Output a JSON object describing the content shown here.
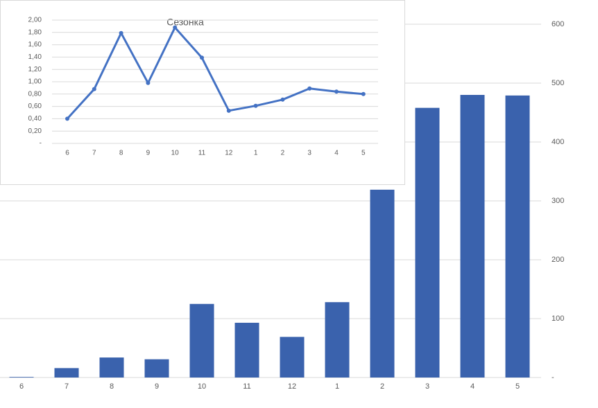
{
  "chart_data": [
    {
      "type": "bar",
      "categories": [
        "6",
        "7",
        "8",
        "9",
        "10",
        "11",
        "12",
        "1",
        "2",
        "3",
        "4",
        "5"
      ],
      "values": [
        1,
        16,
        34,
        31,
        125,
        93,
        69,
        128,
        319,
        458,
        480,
        479
      ],
      "color": "#3a62ad",
      "ylim": [
        0,
        600
      ],
      "yticks": [
        {
          "value": 0,
          "label": "-"
        },
        100,
        200,
        300,
        400,
        500,
        600
      ],
      "grid": true
    },
    {
      "type": "line",
      "title": "Сезонка",
      "categories": [
        "6",
        "7",
        "8",
        "9",
        "10",
        "11",
        "12",
        "1",
        "2",
        "3",
        "4",
        "5"
      ],
      "values": [
        0.4,
        0.88,
        1.79,
        0.98,
        1.88,
        1.39,
        0.53,
        0.61,
        0.71,
        0.89,
        0.84,
        0.8
      ],
      "color": "#4472c4",
      "ylim": [
        0,
        2
      ],
      "yticks": [
        {
          "value": 0,
          "label": "-"
        },
        {
          "value": 0.2,
          "label": "0,20"
        },
        {
          "value": 0.4,
          "label": "0,40"
        },
        {
          "value": 0.6,
          "label": "0,60"
        },
        {
          "value": 0.8,
          "label": "0,80"
        },
        {
          "value": 1.0,
          "label": "1,00"
        },
        {
          "value": 1.2,
          "label": "1,20"
        },
        {
          "value": 1.4,
          "label": "1,40"
        },
        {
          "value": 1.6,
          "label": "1,60"
        },
        {
          "value": 1.8,
          "label": "1,80"
        },
        {
          "value": 2.0,
          "label": "2,00"
        }
      ],
      "grid": true
    }
  ]
}
